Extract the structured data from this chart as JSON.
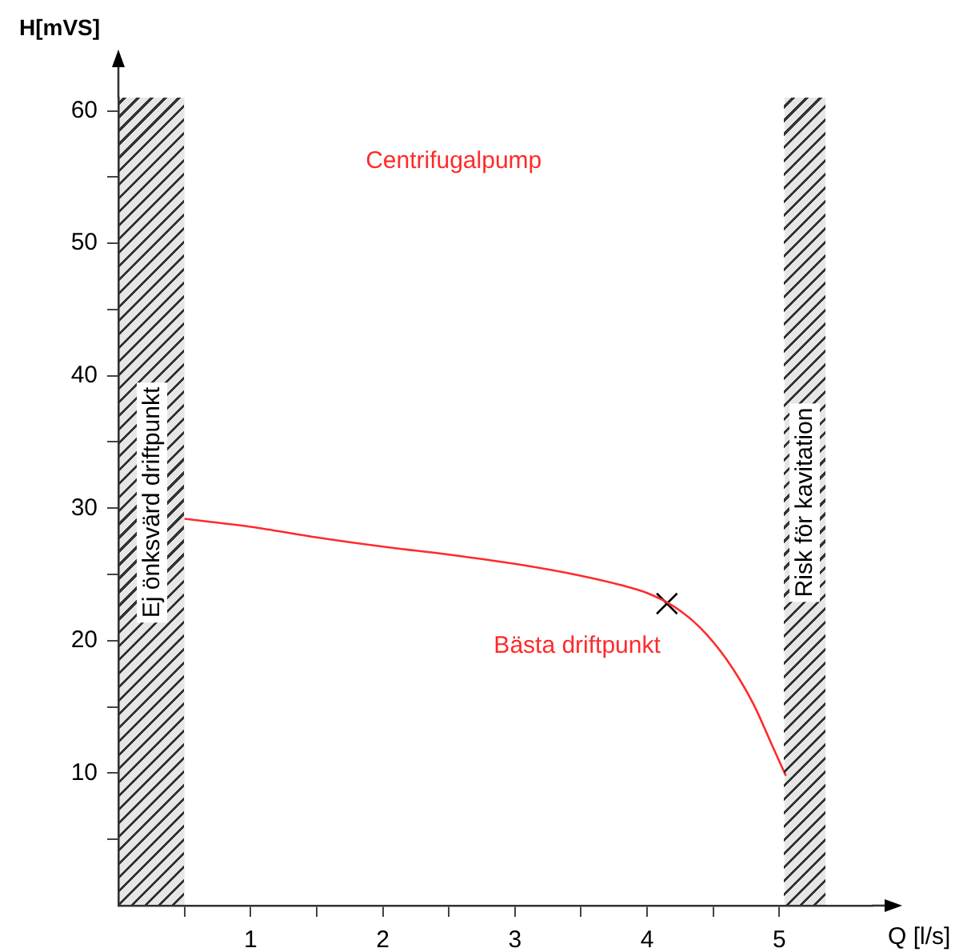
{
  "chart_data": {
    "type": "line",
    "xlabel": "Q [l/s]",
    "ylabel": "H[mVS]",
    "xlim": [
      0,
      5.7
    ],
    "ylim": [
      0,
      61
    ],
    "xticks": [
      {
        "value": 0.5,
        "label": null
      },
      1,
      {
        "value": 1.5,
        "label": null
      },
      2,
      {
        "value": 2.5,
        "label": null
      },
      3,
      {
        "value": 3.5,
        "label": null
      },
      4,
      {
        "value": 4.5,
        "label": null
      },
      5
    ],
    "yticks": [
      {
        "value": 5,
        "label": null
      },
      10,
      {
        "value": 15,
        "label": null
      },
      20,
      {
        "value": 25,
        "label": null
      },
      30,
      {
        "value": 35,
        "label": null
      },
      40,
      {
        "value": 45,
        "label": null
      },
      50,
      {
        "value": 55,
        "label": null
      },
      60
    ],
    "series": [
      {
        "type": "line",
        "color": "#ff2a2a",
        "marker": "none",
        "x": [
          0.5,
          1,
          1.5,
          2,
          2.5,
          3,
          3.5,
          3.8,
          4,
          4.2,
          4.4,
          4.6,
          4.8,
          4.95,
          5.05
        ],
        "values": [
          29.2,
          28.6,
          27.8,
          27.1,
          26.5,
          25.8,
          24.9,
          24.2,
          23.6,
          22.6,
          21,
          18.6,
          15.3,
          12,
          9.8
        ]
      },
      {
        "type": "scatter",
        "color": "#000000",
        "marker": "cross",
        "x": [
          4.15
        ],
        "values": [
          22.8
        ]
      }
    ],
    "bands": [
      {
        "axis": "x",
        "from": 0,
        "to": 0.5,
        "label": "Ej önksvärd driftpunkt",
        "color": "#333333"
      },
      {
        "axis": "x",
        "from": 5.04,
        "to": 5.35,
        "label": "Risk för kavitation",
        "color": "#333333"
      }
    ],
    "annotations": [
      "Centrifugalpump",
      {
        "text": "Bästa driftpunkt",
        "x": 4.15,
        "y": 22.8
      }
    ]
  }
}
